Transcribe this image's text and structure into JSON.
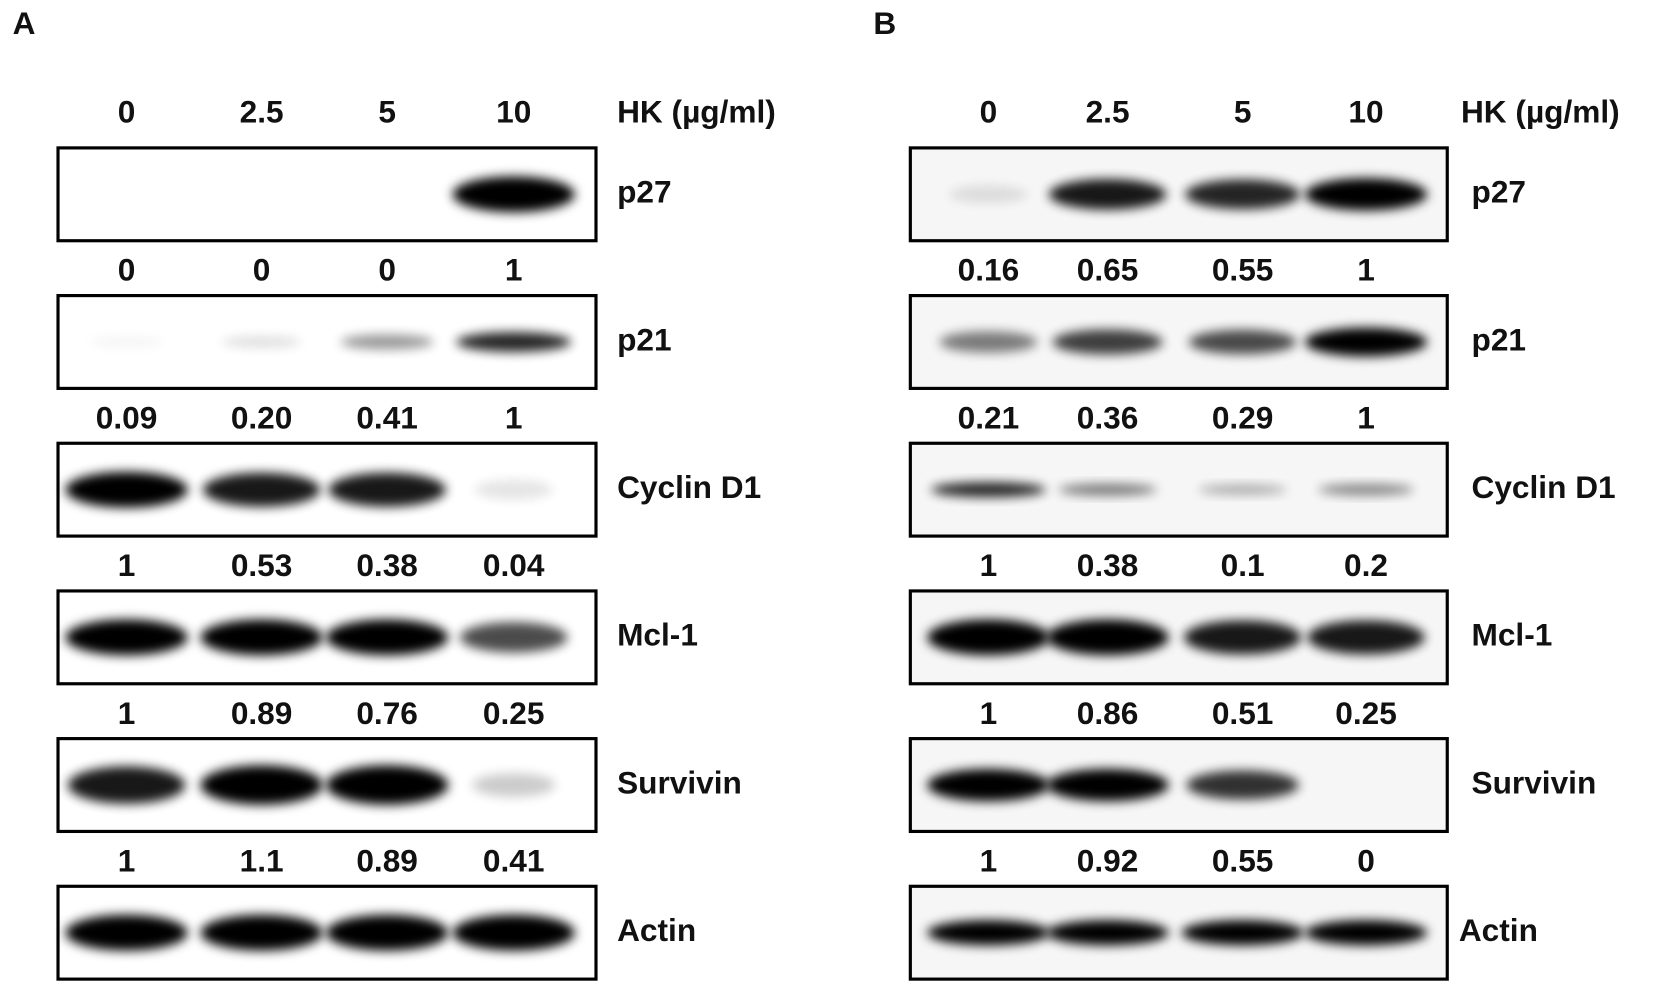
{
  "panels": [
    {
      "letter": "A",
      "doses": [
        "0",
        "2.5",
        "5",
        "10"
      ],
      "treatment": "HK (µg/ml)",
      "blots": [
        {
          "label": "p27",
          "quant": [
            "0",
            "0",
            "0",
            "1"
          ]
        },
        {
          "label": "p21",
          "quant": [
            "0.09",
            "0.20",
            "0.41",
            "1"
          ]
        },
        {
          "label": "Cyclin D1",
          "quant": [
            "1",
            "0.53",
            "0.38",
            "0.04"
          ]
        },
        {
          "label": "Mcl-1",
          "quant": [
            "1",
            "0.89",
            "0.76",
            "0.25"
          ]
        },
        {
          "label": "Survivin",
          "quant": [
            "1",
            "1.1",
            "0.89",
            "0.41"
          ]
        },
        {
          "label": "Actin"
        }
      ]
    },
    {
      "letter": "B",
      "doses": [
        "0",
        "2.5",
        "5",
        "10"
      ],
      "treatment": "HK (µg/ml)",
      "blots": [
        {
          "label": "p27",
          "quant": [
            "0.16",
            "0.65",
            "0.55",
            "1"
          ]
        },
        {
          "label": "p21",
          "quant": [
            "0.21",
            "0.36",
            "0.29",
            "1"
          ]
        },
        {
          "label": "Cyclin D1",
          "quant": [
            "1",
            "0.38",
            "0.1",
            "0.2"
          ]
        },
        {
          "label": "Mcl-1",
          "quant": [
            "1",
            "0.86",
            "0.51",
            "0.25"
          ]
        },
        {
          "label": "Survivin",
          "quant": [
            "1",
            "0.92",
            "0.55",
            "0"
          ]
        },
        {
          "label": "Actin"
        }
      ]
    }
  ]
}
